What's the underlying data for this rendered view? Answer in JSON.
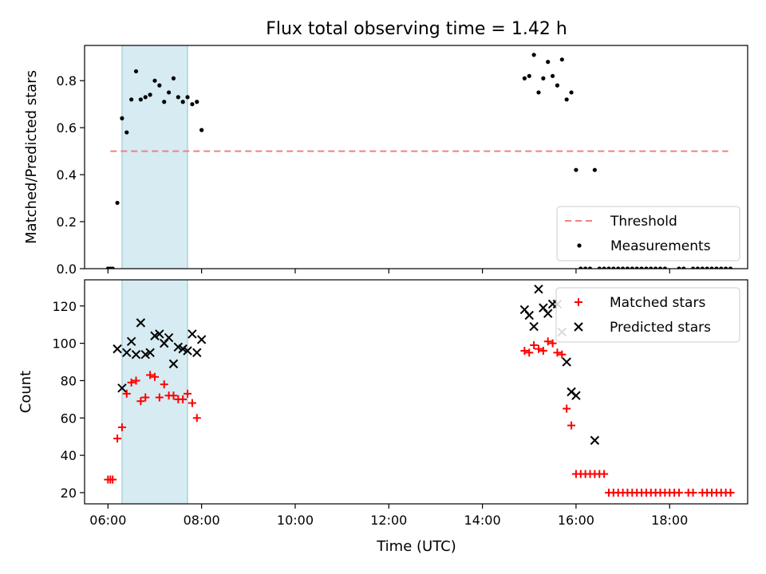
{
  "chart_data": {
    "title": "Flux total observing time = 1.42 h",
    "observing_window": {
      "start": "06:18",
      "end": "07:42",
      "color": "#add8e6"
    },
    "xlabel": "Time (UTC)",
    "x_ticks": [
      "06:00",
      "08:00",
      "10:00",
      "12:00",
      "14:00",
      "16:00",
      "18:00"
    ],
    "xlim": [
      "05:30",
      "19:40"
    ],
    "panels": [
      {
        "type": "scatter",
        "ylabel": "Matched/Predicted stars",
        "ylim": [
          0,
          0.95
        ],
        "y_ticks": [
          "0.0",
          "0.2",
          "0.4",
          "0.6",
          "0.8"
        ],
        "y_tick_values": [
          0,
          0.2,
          0.4,
          0.6,
          0.8
        ],
        "legend": {
          "position": "lower right",
          "entries": [
            "Threshold",
            "Measurements"
          ]
        },
        "threshold": {
          "name": "Threshold",
          "value": 0.5,
          "x_from": "06:03",
          "x_to": "19:15",
          "color": "#f08080"
        },
        "measurements": {
          "name": "Measurements",
          "color": "#000000",
          "points": [
            [
              "06:00",
              0.0
            ],
            [
              "06:03",
              0.0
            ],
            [
              "06:06",
              0.0
            ],
            [
              "06:12",
              0.28
            ],
            [
              "06:18",
              0.64
            ],
            [
              "06:24",
              0.58
            ],
            [
              "06:30",
              0.72
            ],
            [
              "06:36",
              0.84
            ],
            [
              "06:42",
              0.72
            ],
            [
              "06:48",
              0.73
            ],
            [
              "06:54",
              0.74
            ],
            [
              "07:00",
              0.8
            ],
            [
              "07:06",
              0.78
            ],
            [
              "07:12",
              0.71
            ],
            [
              "07:18",
              0.75
            ],
            [
              "07:24",
              0.81
            ],
            [
              "07:30",
              0.73
            ],
            [
              "07:36",
              0.71
            ],
            [
              "07:42",
              0.73
            ],
            [
              "07:48",
              0.7
            ],
            [
              "07:54",
              0.71
            ],
            [
              "08:00",
              0.59
            ],
            [
              "14:54",
              0.81
            ],
            [
              "15:00",
              0.82
            ],
            [
              "15:06",
              0.91
            ],
            [
              "15:12",
              0.75
            ],
            [
              "15:18",
              0.81
            ],
            [
              "15:24",
              0.88
            ],
            [
              "15:30",
              0.82
            ],
            [
              "15:36",
              0.78
            ],
            [
              "15:42",
              0.89
            ],
            [
              "15:48",
              0.72
            ],
            [
              "15:54",
              0.75
            ],
            [
              "16:00",
              0.42
            ],
            [
              "16:06",
              0.0
            ],
            [
              "16:12",
              0.0
            ],
            [
              "16:18",
              0.0
            ],
            [
              "16:24",
              0.42
            ],
            [
              "16:30",
              0.0
            ],
            [
              "16:36",
              0.0
            ],
            [
              "16:42",
              0.0
            ],
            [
              "16:48",
              0.0
            ],
            [
              "16:54",
              0.0
            ],
            [
              "17:00",
              0.0
            ],
            [
              "17:06",
              0.0
            ],
            [
              "17:12",
              0.0
            ],
            [
              "17:18",
              0.0
            ],
            [
              "17:24",
              0.0
            ],
            [
              "17:30",
              0.0
            ],
            [
              "17:36",
              0.0
            ],
            [
              "17:42",
              0.0
            ],
            [
              "17:48",
              0.0
            ],
            [
              "17:54",
              0.0
            ],
            [
              "18:12",
              0.0
            ],
            [
              "18:18",
              0.0
            ],
            [
              "18:30",
              0.0
            ],
            [
              "18:36",
              0.0
            ],
            [
              "18:42",
              0.0
            ],
            [
              "18:48",
              0.0
            ],
            [
              "18:54",
              0.0
            ],
            [
              "19:00",
              0.0
            ],
            [
              "19:06",
              0.0
            ],
            [
              "19:12",
              0.0
            ],
            [
              "19:18",
              0.0
            ]
          ]
        }
      },
      {
        "type": "scatter",
        "ylabel": "Count",
        "ylim": [
          14,
          134
        ],
        "y_ticks": [
          "20",
          "40",
          "60",
          "80",
          "100",
          "120"
        ],
        "y_tick_values": [
          20,
          40,
          60,
          80,
          100,
          120
        ],
        "legend": {
          "position": "upper right",
          "entries": [
            "Matched stars",
            "Predicted stars"
          ]
        },
        "series": [
          {
            "name": "Matched stars",
            "marker": "plus",
            "color": "#ff0000",
            "points": [
              [
                "06:00",
                27
              ],
              [
                "06:03",
                27
              ],
              [
                "06:06",
                27
              ],
              [
                "06:12",
                49
              ],
              [
                "06:18",
                55
              ],
              [
                "06:24",
                73
              ],
              [
                "06:30",
                79
              ],
              [
                "06:36",
                80
              ],
              [
                "06:42",
                69
              ],
              [
                "06:48",
                71
              ],
              [
                "06:54",
                83
              ],
              [
                "07:00",
                82
              ],
              [
                "07:06",
                71
              ],
              [
                "07:12",
                78
              ],
              [
                "07:18",
                72
              ],
              [
                "07:24",
                72
              ],
              [
                "07:30",
                70
              ],
              [
                "07:36",
                70
              ],
              [
                "07:42",
                73
              ],
              [
                "07:48",
                68
              ],
              [
                "07:54",
                60
              ],
              [
                "14:54",
                96
              ],
              [
                "15:00",
                95
              ],
              [
                "15:06",
                99
              ],
              [
                "15:12",
                97
              ],
              [
                "15:18",
                96
              ],
              [
                "15:24",
                101
              ],
              [
                "15:30",
                100
              ],
              [
                "15:36",
                95
              ],
              [
                "15:42",
                94
              ],
              [
                "15:48",
                65
              ],
              [
                "15:54",
                56
              ],
              [
                "16:00",
                30
              ],
              [
                "16:06",
                30
              ],
              [
                "16:12",
                30
              ],
              [
                "16:18",
                30
              ],
              [
                "16:24",
                30
              ],
              [
                "16:30",
                30
              ],
              [
                "16:36",
                30
              ],
              [
                "16:42",
                20
              ],
              [
                "16:48",
                20
              ],
              [
                "16:54",
                20
              ],
              [
                "17:00",
                20
              ],
              [
                "17:06",
                20
              ],
              [
                "17:12",
                20
              ],
              [
                "17:18",
                20
              ],
              [
                "17:24",
                20
              ],
              [
                "17:30",
                20
              ],
              [
                "17:36",
                20
              ],
              [
                "17:42",
                20
              ],
              [
                "17:48",
                20
              ],
              [
                "17:54",
                20
              ],
              [
                "18:00",
                20
              ],
              [
                "18:06",
                20
              ],
              [
                "18:12",
                20
              ],
              [
                "18:24",
                20
              ],
              [
                "18:30",
                20
              ],
              [
                "18:42",
                20
              ],
              [
                "18:48",
                20
              ],
              [
                "18:54",
                20
              ],
              [
                "19:00",
                20
              ],
              [
                "19:06",
                20
              ],
              [
                "19:12",
                20
              ],
              [
                "19:18",
                20
              ]
            ]
          },
          {
            "name": "Predicted stars",
            "marker": "x",
            "color": "#000000",
            "points": [
              [
                "06:12",
                97
              ],
              [
                "06:18",
                76
              ],
              [
                "06:24",
                95
              ],
              [
                "06:30",
                101
              ],
              [
                "06:36",
                94
              ],
              [
                "06:42",
                111
              ],
              [
                "06:48",
                94
              ],
              [
                "06:54",
                95
              ],
              [
                "07:00",
                104
              ],
              [
                "07:06",
                105
              ],
              [
                "07:12",
                100
              ],
              [
                "07:18",
                103
              ],
              [
                "07:24",
                89
              ],
              [
                "07:30",
                98
              ],
              [
                "07:36",
                97
              ],
              [
                "07:42",
                96
              ],
              [
                "07:48",
                105
              ],
              [
                "07:54",
                95
              ],
              [
                "08:00",
                102
              ],
              [
                "14:54",
                118
              ],
              [
                "15:00",
                115
              ],
              [
                "15:06",
                109
              ],
              [
                "15:12",
                129
              ],
              [
                "15:18",
                119
              ],
              [
                "15:24",
                116
              ],
              [
                "15:30",
                121
              ],
              [
                "15:36",
                121
              ],
              [
                "15:42",
                106
              ],
              [
                "15:48",
                90
              ],
              [
                "15:54",
                74
              ],
              [
                "16:00",
                72
              ],
              [
                "16:24",
                48
              ]
            ]
          }
        ]
      }
    ]
  }
}
